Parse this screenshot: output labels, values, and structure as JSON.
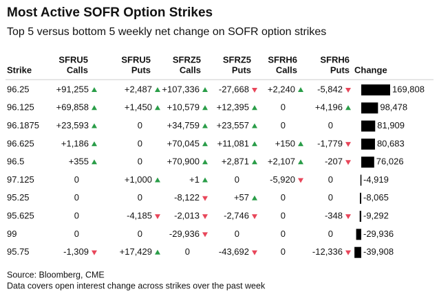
{
  "title": "Most Active SOFR Option Strikes",
  "subtitle": "Top 5 versus bottom 5 weekly net change on SOFR option strikes",
  "table": {
    "headers": [
      [
        "Strike"
      ],
      [
        "SFRU5",
        "Calls"
      ],
      [
        "SFRU5",
        "Puts"
      ],
      [
        "SFRZ5",
        "Calls"
      ],
      [
        "SFRZ5",
        "Puts"
      ],
      [
        "SFRH6",
        "Calls"
      ],
      [
        "SFRH6",
        "Puts"
      ],
      [
        "Change"
      ]
    ],
    "rows": [
      [
        "96.25",
        "+91,255",
        "+2,487",
        "+107,336",
        "-27,668",
        "+2,240",
        "-5,842"
      ],
      [
        "96.125",
        "+69,858",
        "+1,450",
        "+10,579",
        "+12,395",
        "0",
        "+4,196"
      ],
      [
        "96.1875",
        "+23,593",
        "0",
        "+34,759",
        "+23,557",
        "0",
        "0"
      ],
      [
        "96.625",
        "+1,186",
        "0",
        "+70,045",
        "+11,081",
        "+150",
        "-1,779"
      ],
      [
        "96.5",
        "+355",
        "0",
        "+70,900",
        "+2,871",
        "+2,107",
        "-207"
      ],
      [
        "97.125",
        "0",
        "+1,000",
        "+1",
        "0",
        "-5,920",
        "0"
      ],
      [
        "95.25",
        "0",
        "0",
        "-8,122",
        "+57",
        "0",
        "0"
      ],
      [
        "95.625",
        "0",
        "-4,185",
        "-2,013",
        "-2,746",
        "0",
        "-348"
      ],
      [
        "99",
        "0",
        "0",
        "-29,936",
        "0",
        "0",
        "0"
      ],
      [
        "95.75",
        "-1,309",
        "+17,429",
        "0",
        "-43,692",
        "0",
        "-12,336"
      ]
    ],
    "change": {
      "values": [
        169808,
        98478,
        81909,
        80683,
        76026,
        -4919,
        -8065,
        -9292,
        -29936,
        -39908
      ],
      "value_labels": [
        "169,808",
        "98,478",
        "81,909",
        "80,683",
        "76,026",
        "-4,919",
        "-8,065",
        "-9,292",
        "-29,936",
        "-39,908"
      ]
    }
  },
  "footer": [
    "Source: Bloomberg, CME",
    "Data covers open interest change across strikes over the past week"
  ]
}
